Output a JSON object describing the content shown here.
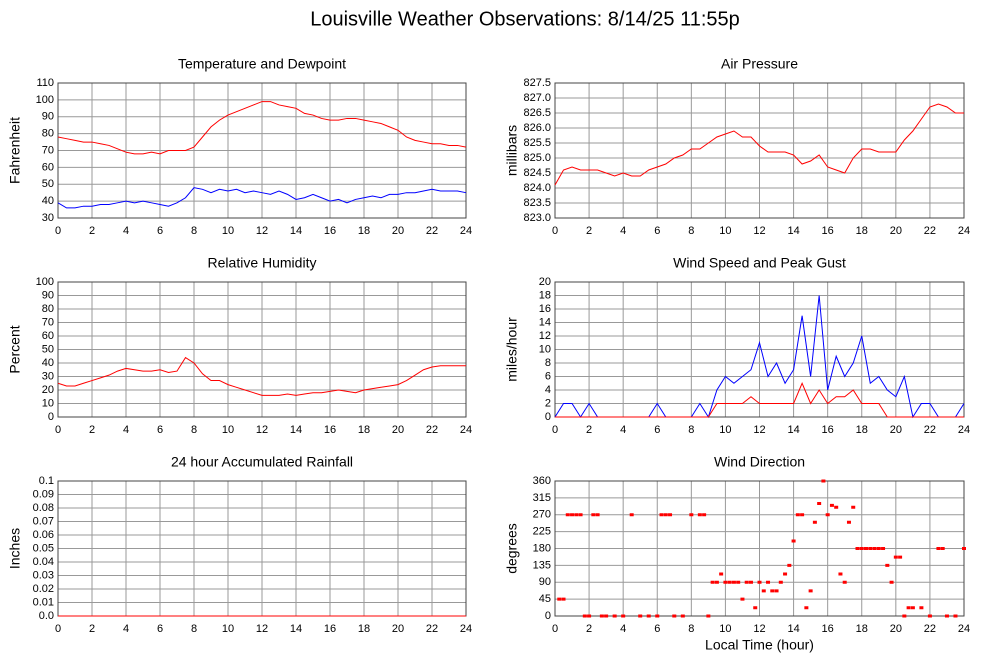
{
  "title": "Louisville Weather Observations: 8/14/25 11:55p",
  "chart_data": [
    {
      "type": "line",
      "title": "Temperature and Dewpoint",
      "ylabel": "Fahrenheit",
      "x": [
        0,
        0.5,
        1,
        1.5,
        2,
        2.5,
        3,
        3.5,
        4,
        4.5,
        5,
        5.5,
        6,
        6.5,
        7,
        7.5,
        8,
        8.5,
        9,
        9.5,
        10,
        10.5,
        11,
        11.5,
        12,
        12.5,
        13,
        13.5,
        14,
        14.5,
        15,
        15.5,
        16,
        16.5,
        17,
        17.5,
        18,
        18.5,
        19,
        19.5,
        20,
        20.5,
        21,
        21.5,
        22,
        22.5,
        23,
        23.5,
        24
      ],
      "series": [
        {
          "color": "#ff0000",
          "values": [
            78,
            77,
            76,
            75,
            75,
            74,
            73,
            71,
            69,
            68,
            68,
            69,
            68,
            70,
            70,
            70,
            72,
            78,
            84,
            88,
            91,
            93,
            95,
            97,
            99,
            99,
            97,
            96,
            95,
            92,
            91,
            89,
            88,
            88,
            89,
            89,
            88,
            87,
            86,
            84,
            82,
            78,
            76,
            75,
            74,
            74,
            73,
            73,
            72
          ]
        },
        {
          "color": "#0000ff",
          "values": [
            39,
            36,
            36,
            37,
            37,
            38,
            38,
            39,
            40,
            39,
            40,
            39,
            38,
            37,
            39,
            42,
            48,
            47,
            45,
            47,
            46,
            47,
            45,
            46,
            45,
            44,
            46,
            44,
            41,
            42,
            44,
            42,
            40,
            41,
            39,
            41,
            42,
            43,
            42,
            44,
            44,
            45,
            45,
            46,
            47,
            46,
            46,
            46,
            45
          ]
        }
      ],
      "xlim": [
        0,
        24
      ],
      "xticks": [
        0,
        2,
        4,
        6,
        8,
        10,
        12,
        14,
        16,
        18,
        20,
        22,
        24
      ],
      "ylim": [
        30,
        110
      ],
      "yticks": [
        30,
        40,
        50,
        60,
        70,
        80,
        90,
        100,
        110
      ],
      "grid": true
    },
    {
      "type": "line",
      "title": "Air Pressure",
      "ylabel": "millibars",
      "x": [
        0,
        0.5,
        1,
        1.5,
        2,
        2.5,
        3,
        3.5,
        4,
        4.5,
        5,
        5.5,
        6,
        6.5,
        7,
        7.5,
        8,
        8.5,
        9,
        9.5,
        10,
        10.5,
        11,
        11.5,
        12,
        12.5,
        13,
        13.5,
        14,
        14.5,
        15,
        15.5,
        16,
        16.5,
        17,
        17.5,
        18,
        18.5,
        19,
        19.5,
        20,
        20.5,
        21,
        21.5,
        22,
        22.5,
        23,
        23.5,
        24
      ],
      "series": [
        {
          "color": "#ff0000",
          "values": [
            824.1,
            824.6,
            824.7,
            824.6,
            824.6,
            824.6,
            824.5,
            824.4,
            824.5,
            824.4,
            824.4,
            824.6,
            824.7,
            824.8,
            825.0,
            825.1,
            825.3,
            825.3,
            825.5,
            825.7,
            825.8,
            825.9,
            825.7,
            825.7,
            825.4,
            825.2,
            825.2,
            825.2,
            825.1,
            824.8,
            824.9,
            825.1,
            824.7,
            824.6,
            824.5,
            825.0,
            825.3,
            825.3,
            825.2,
            825.2,
            825.2,
            825.6,
            825.9,
            826.3,
            826.7,
            826.8,
            826.7,
            826.5,
            826.5
          ]
        }
      ],
      "xlim": [
        0,
        24
      ],
      "xticks": [
        0,
        2,
        4,
        6,
        8,
        10,
        12,
        14,
        16,
        18,
        20,
        22,
        24
      ],
      "ylim": [
        823,
        827.5
      ],
      "yticks": [
        {
          "value": 823,
          "label": "823.0"
        },
        823.5,
        {
          "value": 824,
          "label": "824.0"
        },
        824.5,
        {
          "value": 825,
          "label": "825.0"
        },
        825.5,
        {
          "value": 826,
          "label": "826.0"
        },
        826.5,
        {
          "value": 827,
          "label": "827.0"
        },
        827.5
      ],
      "grid": true
    },
    {
      "type": "line",
      "title": "Relative Humidity",
      "ylabel": "Percent",
      "x": [
        0,
        0.5,
        1,
        1.5,
        2,
        2.5,
        3,
        3.5,
        4,
        4.5,
        5,
        5.5,
        6,
        6.5,
        7,
        7.5,
        8,
        8.5,
        9,
        9.5,
        10,
        10.5,
        11,
        11.5,
        12,
        12.5,
        13,
        13.5,
        14,
        14.5,
        15,
        15.5,
        16,
        16.5,
        17,
        17.5,
        18,
        18.5,
        19,
        19.5,
        20,
        20.5,
        21,
        21.5,
        22,
        22.5,
        23,
        23.5,
        24
      ],
      "series": [
        {
          "color": "#ff0000",
          "values": [
            25,
            23,
            23,
            25,
            27,
            29,
            31,
            34,
            36,
            35,
            34,
            34,
            35,
            33,
            34,
            44,
            40,
            32,
            27,
            27,
            24,
            22,
            20,
            18,
            16,
            16,
            16,
            17,
            16,
            17,
            18,
            18,
            19,
            20,
            19,
            18,
            20,
            21,
            22,
            23,
            24,
            27,
            31,
            35,
            37,
            38,
            38,
            38,
            38
          ]
        }
      ],
      "xlim": [
        0,
        24
      ],
      "xticks": [
        0,
        2,
        4,
        6,
        8,
        10,
        12,
        14,
        16,
        18,
        20,
        22,
        24
      ],
      "ylim": [
        0,
        100
      ],
      "yticks": [
        0,
        10,
        20,
        30,
        40,
        50,
        60,
        70,
        80,
        90,
        100
      ],
      "grid": true
    },
    {
      "type": "line",
      "title": "Wind Speed and Peak Gust",
      "ylabel": "miles/hour",
      "x": [
        0,
        0.5,
        1,
        1.5,
        2,
        2.5,
        3,
        3.5,
        4,
        4.5,
        5,
        5.5,
        6,
        6.5,
        7,
        7.5,
        8,
        8.5,
        9,
        9.5,
        10,
        10.5,
        11,
        11.5,
        12,
        12.5,
        13,
        13.5,
        14,
        14.5,
        15,
        15.5,
        16,
        16.5,
        17,
        17.5,
        18,
        18.5,
        19,
        19.5,
        20,
        20.5,
        21,
        21.5,
        22,
        22.5,
        23,
        23.5,
        24
      ],
      "series": [
        {
          "color": "#0000ff",
          "values": [
            0,
            2,
            2,
            0,
            2,
            0,
            0,
            0,
            0,
            0,
            0,
            0,
            2,
            0,
            0,
            0,
            0,
            2,
            0,
            4,
            6,
            5,
            6,
            7,
            11,
            6,
            8,
            5,
            7,
            15,
            6,
            18,
            4,
            9,
            6,
            8,
            12,
            5,
            6,
            4,
            3,
            6,
            0,
            2,
            2,
            0,
            0,
            0,
            2
          ]
        },
        {
          "color": "#ff0000",
          "values": [
            0,
            0,
            0,
            0,
            0,
            0,
            0,
            0,
            0,
            0,
            0,
            0,
            0,
            0,
            0,
            0,
            0,
            0,
            0,
            2,
            2,
            2,
            2,
            3,
            2,
            2,
            2,
            2,
            2,
            5,
            2,
            4,
            2,
            3,
            3,
            4,
            2,
            2,
            2,
            0,
            0,
            0,
            0,
            0,
            0,
            0,
            0,
            0,
            0
          ]
        }
      ],
      "xlim": [
        0,
        24
      ],
      "xticks": [
        0,
        2,
        4,
        6,
        8,
        10,
        12,
        14,
        16,
        18,
        20,
        22,
        24
      ],
      "ylim": [
        0,
        20
      ],
      "yticks": [
        0,
        2,
        4,
        6,
        8,
        10,
        12,
        14,
        16,
        18,
        20
      ],
      "grid": true
    },
    {
      "type": "line",
      "title": "24 hour Accumulated Rainfall",
      "ylabel": "Inches",
      "x": [
        0,
        24
      ],
      "series": [
        {
          "color": "#ff0000",
          "values": [
            0,
            0
          ]
        }
      ],
      "xlim": [
        0,
        24
      ],
      "xticks": [
        0,
        2,
        4,
        6,
        8,
        10,
        12,
        14,
        16,
        18,
        20,
        22,
        24
      ],
      "ylim": [
        0,
        0.1
      ],
      "yticks": [
        {
          "value": 0,
          "label": "0.0"
        },
        0.01,
        0.02,
        0.03,
        0.04,
        0.05,
        0.06,
        0.07,
        0.08,
        0.09,
        0.1
      ],
      "grid": true
    },
    {
      "type": "scatter",
      "title": "Wind Direction",
      "ylabel": "degrees",
      "xlabel": "Local Time (hour)",
      "x": [
        0.25,
        0.5,
        0.75,
        1,
        1.25,
        1.5,
        1.75,
        2,
        2.25,
        2.5,
        2.75,
        3,
        3.5,
        4,
        4.5,
        5,
        5.5,
        6,
        6.25,
        6.5,
        6.75,
        7,
        7.5,
        8,
        8.5,
        8.75,
        9,
        9.25,
        9.5,
        9.75,
        10,
        10.25,
        10.5,
        10.75,
        11,
        11.25,
        11.5,
        11.75,
        12,
        12.25,
        12.5,
        12.75,
        13,
        13.25,
        13.5,
        13.75,
        14,
        14.25,
        14.5,
        14.75,
        15,
        15.25,
        15.5,
        15.75,
        16,
        16.25,
        16.5,
        16.75,
        17,
        17.25,
        17.5,
        17.75,
        18,
        18.25,
        18.5,
        18.75,
        19,
        19.25,
        19.5,
        19.75,
        20,
        20.25,
        20.5,
        20.75,
        21,
        21.5,
        22,
        22.5,
        22.75,
        23,
        23.5,
        24
      ],
      "series": [
        {
          "color": "#ff0000",
          "values": [
            45,
            45,
            270,
            270,
            270,
            270,
            0,
            0,
            270,
            270,
            0,
            0,
            0,
            0,
            270,
            0,
            0,
            0,
            270,
            270,
            270,
            0,
            0,
            270,
            270,
            270,
            0,
            90,
            90,
            112,
            90,
            90,
            90,
            90,
            45,
            90,
            90,
            22,
            90,
            67,
            90,
            67,
            67,
            90,
            112,
            135,
            200,
            270,
            270,
            22,
            67,
            250,
            300,
            360,
            270,
            295,
            290,
            112,
            90,
            250,
            290,
            180,
            180,
            180,
            180,
            180,
            180,
            180,
            135,
            90,
            157,
            157,
            0,
            22,
            22,
            22,
            0,
            180,
            180,
            0,
            0,
            180
          ]
        }
      ],
      "xlim": [
        0,
        24
      ],
      "xticks": [
        0,
        2,
        4,
        6,
        8,
        10,
        12,
        14,
        16,
        18,
        20,
        22,
        24
      ],
      "ylim": [
        0,
        360
      ],
      "yticks": [
        0,
        45,
        90,
        135,
        180,
        225,
        270,
        315,
        360
      ],
      "grid": true
    }
  ]
}
